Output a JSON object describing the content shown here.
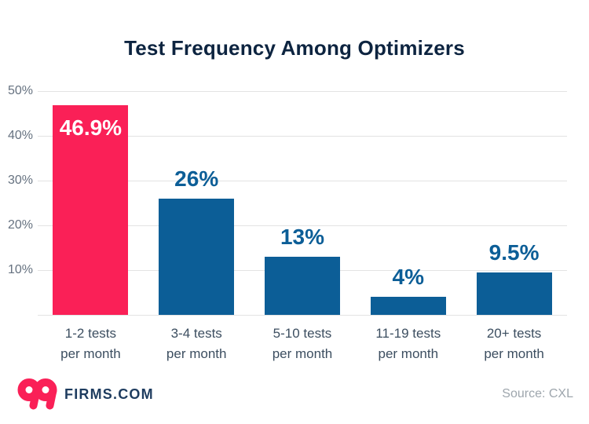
{
  "title": "Test Frequency Among Optimizers",
  "colors": {
    "highlight": "#FA2057",
    "bar": "#0C5E97",
    "title_text": "#0D2440",
    "value_label": "#0C5E97",
    "value_label_highlight": "#FFFFFF",
    "x_label": "#3C4E60",
    "y_label": "#667280",
    "gridline": "#E3E3E3",
    "source_text": "#9EA6AD",
    "logo_pink": "#FA2057",
    "logo_navy": "#1E3C5F"
  },
  "footer": {
    "logo_number": "99",
    "logo_text": "FIRMS.COM",
    "source": "Source: CXL"
  },
  "chart_data": {
    "type": "bar",
    "title": "Test Frequency Among Optimizers",
    "categories": [
      "1-2 tests\nper month",
      "3-4 tests\nper month",
      "5-10 tests\nper month",
      "11-19 tests\nper month",
      "20+ tests\nper month"
    ],
    "values": [
      46.9,
      26,
      13,
      4,
      9.5
    ],
    "value_labels": [
      "46.9%",
      "26%",
      "13%",
      "4%",
      "9.5%"
    ],
    "highlight_index": 0,
    "ylim": [
      0,
      50
    ],
    "yticks": [
      "50%",
      "40%",
      "30%",
      "20%",
      "10%"
    ],
    "grid": true,
    "legend_position": "none",
    "xlabel": "",
    "ylabel": ""
  }
}
